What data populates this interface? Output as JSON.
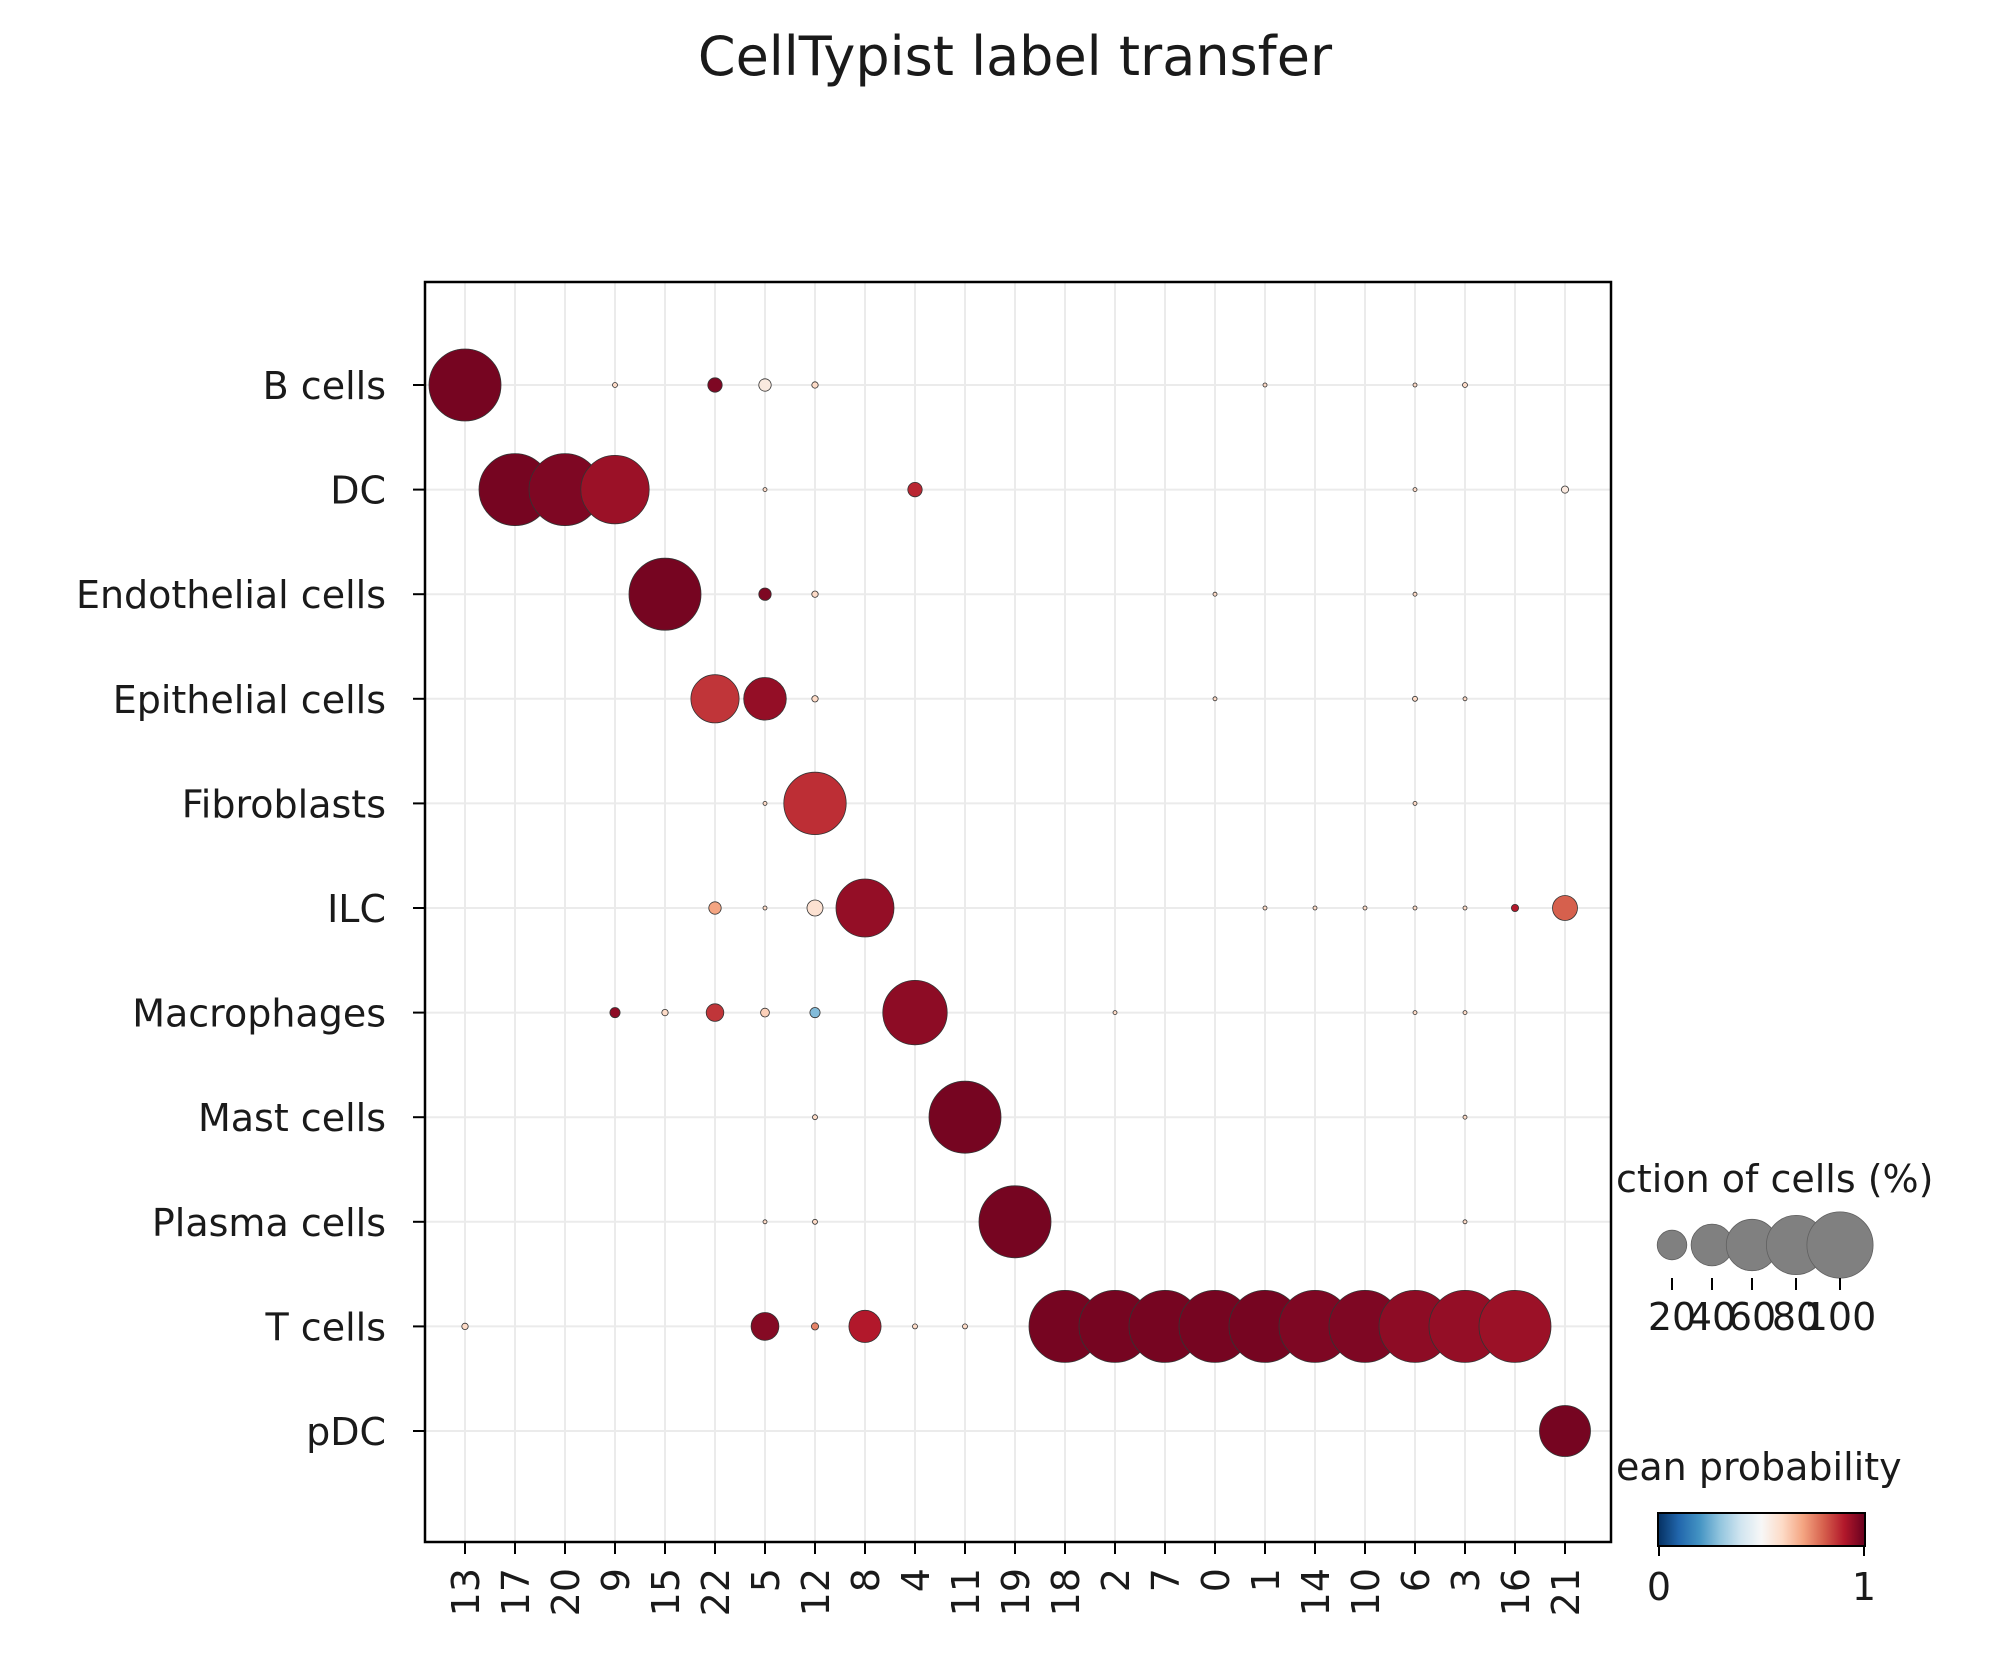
{
  "chart_data": {
    "type": "scatter",
    "subtype": "dotplot",
    "title": "CellTypist label transfer",
    "rows": [
      "B cells",
      "DC",
      "Endothelial cells",
      "Epithelial cells",
      "Fibroblasts",
      "ILC",
      "Macrophages",
      "Mast cells",
      "Plasma cells",
      "T cells",
      "pDC"
    ],
    "columns": [
      "13",
      "17",
      "20",
      "9",
      "15",
      "22",
      "5",
      "12",
      "8",
      "4",
      "11",
      "19",
      "18",
      "2",
      "7",
      "0",
      "1",
      "14",
      "10",
      "6",
      "3",
      "16",
      "21"
    ],
    "grid": true,
    "points": [
      {
        "row": "B cells",
        "col": "13",
        "fraction": 100,
        "probability": 0.98
      },
      {
        "row": "B cells",
        "col": "9",
        "fraction": 0.5,
        "probability": 0.6
      },
      {
        "row": "B cells",
        "col": "22",
        "fraction": 4,
        "probability": 0.97
      },
      {
        "row": "B cells",
        "col": "5",
        "fraction": 3,
        "probability": 0.55
      },
      {
        "row": "B cells",
        "col": "12",
        "fraction": 0.8,
        "probability": 0.6
      },
      {
        "row": "B cells",
        "col": "1",
        "fraction": 0.3,
        "probability": 0.6
      },
      {
        "row": "B cells",
        "col": "6",
        "fraction": 0.3,
        "probability": 0.6
      },
      {
        "row": "B cells",
        "col": "3",
        "fraction": 0.5,
        "probability": 0.6
      },
      {
        "row": "DC",
        "col": "17",
        "fraction": 100,
        "probability": 0.98
      },
      {
        "row": "DC",
        "col": "20",
        "fraction": 100,
        "probability": 0.97
      },
      {
        "row": "DC",
        "col": "9",
        "fraction": 90,
        "probability": 0.93
      },
      {
        "row": "DC",
        "col": "5",
        "fraction": 0.3,
        "probability": 0.6
      },
      {
        "row": "DC",
        "col": "4",
        "fraction": 4,
        "probability": 0.88
      },
      {
        "row": "DC",
        "col": "6",
        "fraction": 0.3,
        "probability": 0.6
      },
      {
        "row": "DC",
        "col": "21",
        "fraction": 1,
        "probability": 0.55
      },
      {
        "row": "Endothelial cells",
        "col": "15",
        "fraction": 100,
        "probability": 0.98
      },
      {
        "row": "Endothelial cells",
        "col": "5",
        "fraction": 3,
        "probability": 0.97
      },
      {
        "row": "Endothelial cells",
        "col": "12",
        "fraction": 0.8,
        "probability": 0.6
      },
      {
        "row": "Endothelial cells",
        "col": "0",
        "fraction": 0.3,
        "probability": 0.6
      },
      {
        "row": "Endothelial cells",
        "col": "6",
        "fraction": 0.3,
        "probability": 0.6
      },
      {
        "row": "Epithelial cells",
        "col": "22",
        "fraction": 45,
        "probability": 0.86
      },
      {
        "row": "Epithelial cells",
        "col": "5",
        "fraction": 35,
        "probability": 0.94
      },
      {
        "row": "Epithelial cells",
        "col": "12",
        "fraction": 0.8,
        "probability": 0.6
      },
      {
        "row": "Epithelial cells",
        "col": "0",
        "fraction": 0.3,
        "probability": 0.6
      },
      {
        "row": "Epithelial cells",
        "col": "6",
        "fraction": 0.5,
        "probability": 0.6
      },
      {
        "row": "Epithelial cells",
        "col": "3",
        "fraction": 0.3,
        "probability": 0.6
      },
      {
        "row": "Fibroblasts",
        "col": "5",
        "fraction": 0.3,
        "probability": 0.6
      },
      {
        "row": "Fibroblasts",
        "col": "12",
        "fraction": 75,
        "probability": 0.87
      },
      {
        "row": "Fibroblasts",
        "col": "6",
        "fraction": 0.3,
        "probability": 0.6
      },
      {
        "row": "ILC",
        "col": "22",
        "fraction": 3,
        "probability": 0.7
      },
      {
        "row": "ILC",
        "col": "5",
        "fraction": 0.3,
        "probability": 0.6
      },
      {
        "row": "ILC",
        "col": "12",
        "fraction": 5,
        "probability": 0.58
      },
      {
        "row": "ILC",
        "col": "8",
        "fraction": 65,
        "probability": 0.94
      },
      {
        "row": "ILC",
        "col": "1",
        "fraction": 0.3,
        "probability": 0.6
      },
      {
        "row": "ILC",
        "col": "14",
        "fraction": 0.3,
        "probability": 0.6
      },
      {
        "row": "ILC",
        "col": "10",
        "fraction": 0.3,
        "probability": 0.6
      },
      {
        "row": "ILC",
        "col": "6",
        "fraction": 0.3,
        "probability": 0.6
      },
      {
        "row": "ILC",
        "col": "3",
        "fraction": 0.3,
        "probability": 0.6
      },
      {
        "row": "ILC",
        "col": "16",
        "fraction": 1,
        "probability": 0.9
      },
      {
        "row": "ILC",
        "col": "21",
        "fraction": 12,
        "probability": 0.8
      },
      {
        "row": "Macrophages",
        "col": "9",
        "fraction": 2,
        "probability": 0.95
      },
      {
        "row": "Macrophages",
        "col": "15",
        "fraction": 0.8,
        "probability": 0.6
      },
      {
        "row": "Macrophages",
        "col": "22",
        "fraction": 6,
        "probability": 0.86
      },
      {
        "row": "Macrophages",
        "col": "5",
        "fraction": 1.5,
        "probability": 0.62
      },
      {
        "row": "Macrophages",
        "col": "12",
        "fraction": 2,
        "probability": 0.28
      },
      {
        "row": "Macrophages",
        "col": "4",
        "fraction": 80,
        "probability": 0.95
      },
      {
        "row": "Macrophages",
        "col": "2",
        "fraction": 0.3,
        "probability": 0.6
      },
      {
        "row": "Macrophages",
        "col": "6",
        "fraction": 0.3,
        "probability": 0.6
      },
      {
        "row": "Macrophages",
        "col": "3",
        "fraction": 0.3,
        "probability": 0.6
      },
      {
        "row": "Mast cells",
        "col": "12",
        "fraction": 0.5,
        "probability": 0.6
      },
      {
        "row": "Mast cells",
        "col": "11",
        "fraction": 100,
        "probability": 0.98
      },
      {
        "row": "Mast cells",
        "col": "3",
        "fraction": 0.3,
        "probability": 0.6
      },
      {
        "row": "Plasma cells",
        "col": "5",
        "fraction": 0.3,
        "probability": 0.6
      },
      {
        "row": "Plasma cells",
        "col": "12",
        "fraction": 0.5,
        "probability": 0.6
      },
      {
        "row": "Plasma cells",
        "col": "19",
        "fraction": 100,
        "probability": 0.98
      },
      {
        "row": "Plasma cells",
        "col": "3",
        "fraction": 0.3,
        "probability": 0.6
      },
      {
        "row": "T cells",
        "col": "13",
        "fraction": 0.8,
        "probability": 0.6
      },
      {
        "row": "T cells",
        "col": "5",
        "fraction": 15,
        "probability": 0.96
      },
      {
        "row": "T cells",
        "col": "12",
        "fraction": 1,
        "probability": 0.75
      },
      {
        "row": "T cells",
        "col": "8",
        "fraction": 20,
        "probability": 0.9
      },
      {
        "row": "T cells",
        "col": "4",
        "fraction": 0.5,
        "probability": 0.6
      },
      {
        "row": "T cells",
        "col": "11",
        "fraction": 0.5,
        "probability": 0.6
      },
      {
        "row": "T cells",
        "col": "18",
        "fraction": 100,
        "probability": 0.98
      },
      {
        "row": "T cells",
        "col": "2",
        "fraction": 100,
        "probability": 0.98
      },
      {
        "row": "T cells",
        "col": "7",
        "fraction": 100,
        "probability": 0.98
      },
      {
        "row": "T cells",
        "col": "0",
        "fraction": 100,
        "probability": 0.98
      },
      {
        "row": "T cells",
        "col": "1",
        "fraction": 100,
        "probability": 0.98
      },
      {
        "row": "T cells",
        "col": "14",
        "fraction": 100,
        "probability": 0.97
      },
      {
        "row": "T cells",
        "col": "10",
        "fraction": 100,
        "probability": 0.97
      },
      {
        "row": "T cells",
        "col": "6",
        "fraction": 100,
        "probability": 0.95
      },
      {
        "row": "T cells",
        "col": "3",
        "fraction": 100,
        "probability": 0.94
      },
      {
        "row": "T cells",
        "col": "16",
        "fraction": 100,
        "probability": 0.93
      },
      {
        "row": "pDC",
        "col": "21",
        "fraction": 50,
        "probability": 0.98
      }
    ],
    "size_legend": {
      "title": "ction of cells (%)",
      "ticks": [
        20,
        40,
        60,
        80,
        100
      ],
      "tick_labels": [
        "20",
        "40",
        "60",
        "80",
        "100"
      ]
    },
    "color_legend": {
      "title": "ean probability",
      "colormap": "RdBu_r",
      "range": [
        0,
        1
      ],
      "tick_labels": [
        "0",
        "1"
      ]
    }
  }
}
